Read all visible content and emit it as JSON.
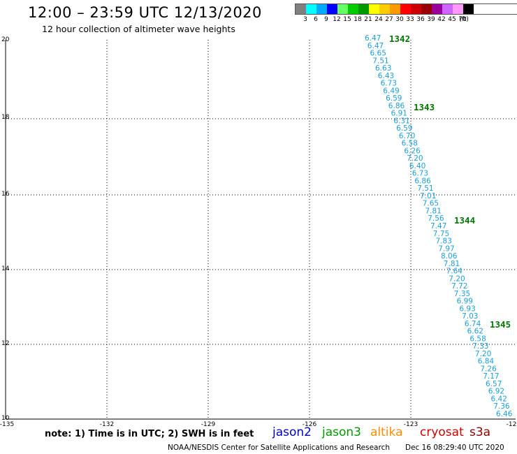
{
  "header": {
    "title": "12:00 – 23:59 UTC 12/13/2020",
    "subtitle": "12 hour collection of altimeter wave heights"
  },
  "legend": {
    "colors": [
      "#808080",
      "#00ffff",
      "#00aaff",
      "#0000ff",
      "#66ff66",
      "#00cc00",
      "#009900",
      "#ffff00",
      "#ffcc00",
      "#ff9900",
      "#ff0000",
      "#cc0000",
      "#990000",
      "#990099",
      "#cc66ff",
      "#ff99ff",
      "#000000"
    ],
    "labels": [
      "3",
      "6",
      "9",
      "12",
      "15",
      "18",
      "21",
      "24",
      "27",
      "30",
      "33",
      "36",
      "39",
      "42",
      "45",
      "70",
      "(ft)"
    ]
  },
  "axes": {
    "lat_labels": [
      "20",
      "18",
      "16",
      "14",
      "12",
      "10"
    ],
    "lon_labels": [
      "-135",
      "-132",
      "-129",
      "-126",
      "-123",
      "-12"
    ]
  },
  "track": {
    "color": "#1a9fd8",
    "values": [
      "6.47",
      "6.47",
      "6.65",
      "7.51",
      "6.63",
      "6.43",
      "6.73",
      "6.49",
      "6.59",
      "6.86",
      "6.91",
      "6.31",
      "6.59",
      "6.70",
      "6.58",
      "6.26",
      "7.20",
      "6.40",
      "6.73",
      "6.86",
      "7.51",
      "7.01",
      "7.65",
      "7.81",
      "7.56",
      "7.47",
      "7.75",
      "7.83",
      "7.97",
      "8.06",
      "7.81",
      "7.64",
      "7.20",
      "7.72",
      "7.35",
      "6.99",
      "6.93",
      "7.03",
      "6.74",
      "6.62",
      "6.58",
      "7.33",
      "7.20",
      "6.84",
      "7.26",
      "7.17",
      "6.57",
      "6.92",
      "6.42",
      "7.36",
      "6.46"
    ]
  },
  "passes": [
    {
      "label": "1342"
    },
    {
      "label": "1343"
    },
    {
      "label": "1344"
    },
    {
      "label": "1345"
    }
  ],
  "footer": {
    "note": "note: 1) Time is in UTC; 2) SWH is in feet",
    "satellites": [
      {
        "name": "jason2",
        "color": "#0000cc"
      },
      {
        "name": "jason3",
        "color": "#009900"
      },
      {
        "name": "altika",
        "color": "#ff8c00"
      },
      {
        "name": "cryosat",
        "color": "#cc0000"
      },
      {
        "name": "s3a",
        "color": "#8b0000"
      }
    ],
    "credit": "NOAA/NESDIS Center for Satellite Applications and Research",
    "timestamp": "Dec 16 08:29:40 UTC 2020"
  }
}
